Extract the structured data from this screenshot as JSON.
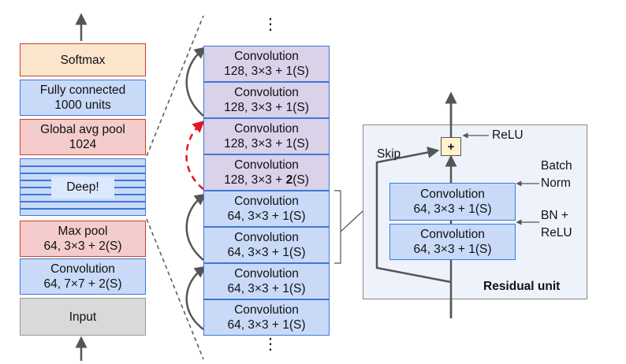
{
  "left_stack": {
    "softmax": "Softmax",
    "fc_line1": "Fully connected",
    "fc_line2": "1000 units",
    "gap_line1": "Global avg pool",
    "gap_line2": "1024",
    "deep": "Deep!",
    "maxpool_line1": "Max pool",
    "maxpool_line2": "64, 3×3 + 2(S)",
    "conv_line1": "Convolution",
    "conv_line2": "64, 7×7 + 2(S)",
    "input": "Input"
  },
  "middle_stack": {
    "layers": [
      {
        "line1": "Convolution",
        "line2": "128, 3×3 + 1(S)"
      },
      {
        "line1": "Convolution",
        "line2": "128, 3×3 + 1(S)"
      },
      {
        "line1": "Convolution",
        "line2": "128, 3×3 + 1(S)"
      },
      {
        "line1": "Convolution",
        "line2_prefix": "128, 3×3 + ",
        "line2_bold": "2",
        "line2_suffix": "(S)"
      },
      {
        "line1": "Convolution",
        "line2": "64, 3×3 + 1(S)"
      },
      {
        "line1": "Convolution",
        "line2": "64, 3×3 + 1(S)"
      },
      {
        "line1": "Convolution",
        "line2": "64, 3×3 + 1(S)"
      },
      {
        "line1": "Convolution",
        "line2": "64, 3×3 + 1(S)"
      }
    ],
    "ellipsis": "⋮"
  },
  "residual_unit": {
    "title": "Residual unit",
    "plus": "+",
    "relu": "ReLU",
    "skip": "Skip",
    "batch_norm_line1": "Batch",
    "batch_norm_line2": "Norm",
    "bn_relu_line1": "BN +",
    "bn_relu_line2": "ReLU",
    "conv_top_line1": "Convolution",
    "conv_top_line2": "64, 3×3 + 1(S)",
    "conv_bottom_line1": "Convolution",
    "conv_bottom_line2": "64, 3×3 + 1(S)"
  },
  "colors": {
    "blue_fill": "#c9daf8",
    "blue_border": "#3c78d8",
    "red_fill": "#f4cccc",
    "red_border": "#cc4125",
    "orange_fill": "#fce5cd",
    "purple_fill": "#d9d2e9",
    "gray_fill": "#d9d9d9",
    "skip_dashed": "#e8141f",
    "arrow": "#555555"
  }
}
